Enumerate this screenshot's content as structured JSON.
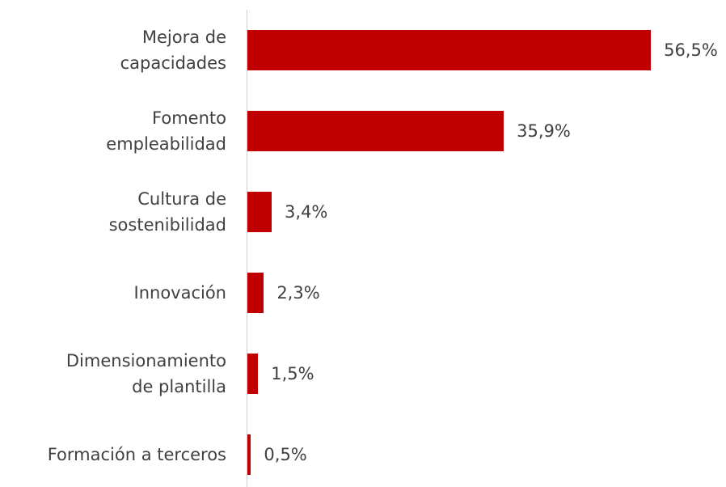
{
  "chart_data": {
    "type": "bar",
    "orientation": "horizontal",
    "categories": [
      "Mejora de\ncapacidades",
      "Fomento\nempleabilidad",
      "Cultura de\nsostenibilidad",
      "Innovación",
      "Dimensionamiento\nde plantilla",
      "Formación a terceros"
    ],
    "values": [
      56.5,
      35.9,
      3.4,
      2.3,
      1.5,
      0.5
    ],
    "value_labels": [
      "56,5%",
      "35,9%",
      "3,4%",
      "2,3%",
      "1,5%",
      "0,5%"
    ],
    "color": "#c00000",
    "xlim": [
      0,
      60
    ]
  }
}
